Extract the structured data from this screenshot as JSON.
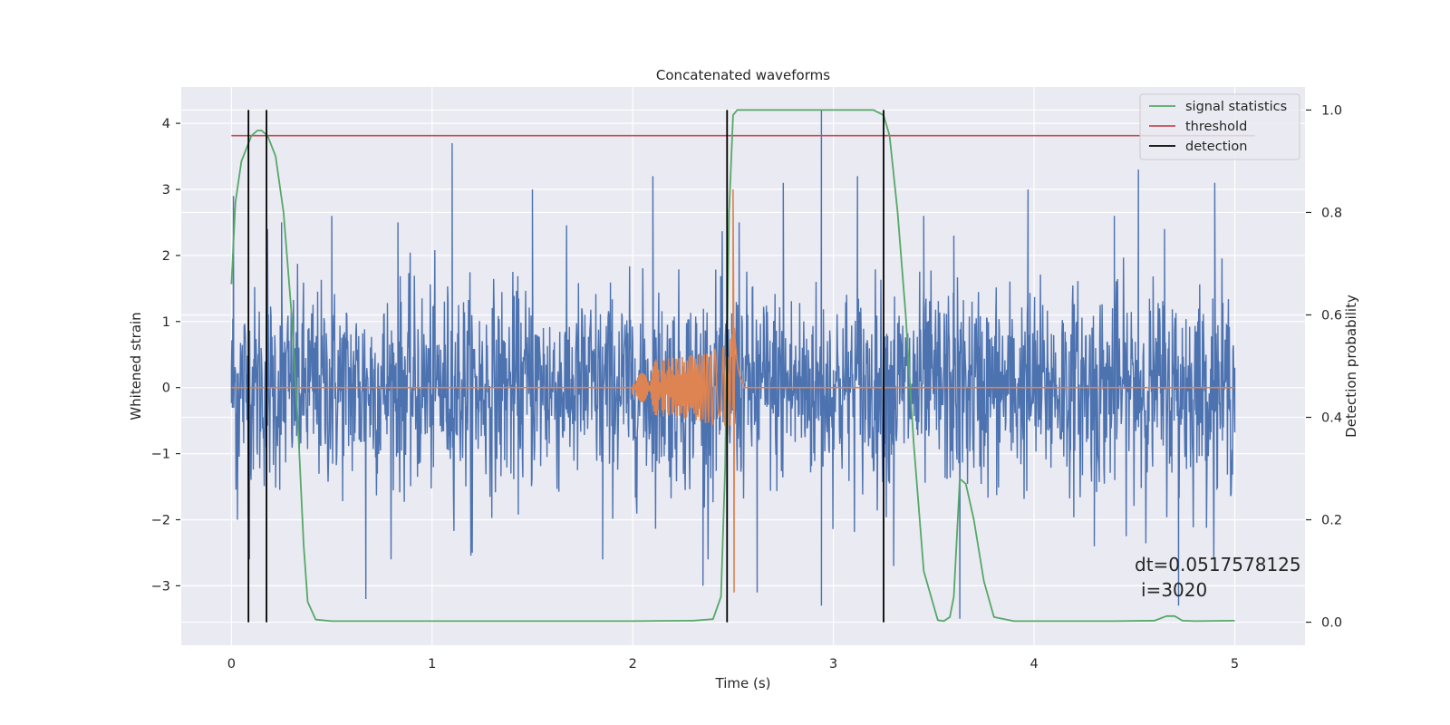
{
  "chart_data": {
    "type": "line",
    "title": "Concatenated waveforms",
    "xlabel": "Time (s)",
    "ylabel_left": "Whitened strain",
    "ylabel_right": "Detection probability",
    "xlim": [
      -0.25,
      5.35
    ],
    "ylim_left": [
      -3.9,
      4.55
    ],
    "ylim_right": [
      -0.045,
      1.045
    ],
    "x_ticks": [
      0,
      1,
      2,
      3,
      4,
      5
    ],
    "x_tick_labels": [
      "0",
      "1",
      "2",
      "3",
      "4",
      "5"
    ],
    "y_left_ticks": [
      -3,
      -2,
      -1,
      0,
      1,
      2,
      3,
      4
    ],
    "y_left_tick_labels": [
      "−3",
      "−2",
      "−1",
      "0",
      "1",
      "2",
      "3",
      "4"
    ],
    "y_right_ticks": [
      0.0,
      0.2,
      0.4,
      0.6,
      0.8,
      1.0
    ],
    "y_right_tick_labels": [
      "0.0",
      "0.2",
      "0.4",
      "0.6",
      "0.8",
      "1.0"
    ],
    "grid": true,
    "legend_position": "top-right",
    "legend": [
      {
        "label": "signal statistics",
        "color": "#55a868"
      },
      {
        "label": "threshold",
        "color": "#c44e52"
      },
      {
        "label": "detection",
        "color": "#000000"
      }
    ],
    "colors": {
      "noise": "#4c72b0",
      "waveform": "#dd8452",
      "signal_statistics": "#55a868",
      "threshold": "#c44e52",
      "detection": "#000000",
      "axes_background": "#eaeaf2",
      "grid": "#ffffff"
    },
    "series": [
      {
        "axis": "left",
        "color": "#4c72b0",
        "x_range": [
          0,
          5
        ],
        "description_points": [
          [
            0.0,
            0.3
          ],
          [
            0.01,
            2.9
          ],
          [
            0.03,
            -2.0
          ],
          [
            0.09,
            -2.6
          ],
          [
            0.18,
            2.4
          ],
          [
            0.25,
            2.5
          ],
          [
            0.5,
            2.6
          ],
          [
            0.67,
            -3.2
          ],
          [
            0.83,
            2.5
          ],
          [
            1.1,
            3.7
          ],
          [
            1.2,
            -2.5
          ],
          [
            1.5,
            3.0
          ],
          [
            1.85,
            -2.6
          ],
          [
            2.1,
            3.2
          ],
          [
            2.35,
            -3.0
          ],
          [
            2.47,
            -3.2
          ],
          [
            2.53,
            2.5
          ],
          [
            2.62,
            -3.1
          ],
          [
            2.75,
            3.1
          ],
          [
            2.94,
            4.2
          ],
          [
            2.94,
            -3.3
          ],
          [
            3.12,
            3.2
          ],
          [
            3.3,
            -2.7
          ],
          [
            3.45,
            2.6
          ],
          [
            3.6,
            2.3
          ],
          [
            3.63,
            -3.5
          ],
          [
            3.97,
            3.0
          ],
          [
            4.3,
            -2.4
          ],
          [
            4.4,
            2.6
          ],
          [
            4.52,
            3.3
          ],
          [
            4.65,
            2.4
          ],
          [
            4.72,
            -3.3
          ],
          [
            4.9,
            3.1
          ],
          [
            5.0,
            0.3
          ]
        ]
      },
      {
        "axis": "left",
        "color": "#dd8452",
        "name": "",
        "chirp": {
          "start": 2.0,
          "merger": 2.5,
          "end": 2.55,
          "peak": 3.0,
          "trough": -3.1
        }
      },
      {
        "axis": "right",
        "name": "signal statistics",
        "color": "#55a868",
        "x": [
          0.0,
          0.02,
          0.05,
          0.1,
          0.13,
          0.15,
          0.18,
          0.22,
          0.26,
          0.3,
          0.33,
          0.36,
          0.38,
          0.42,
          0.5,
          1.0,
          1.5,
          2.0,
          2.3,
          2.4,
          2.44,
          2.46,
          2.48,
          2.5,
          2.52,
          2.55,
          2.8,
          3.0,
          3.1,
          3.2,
          3.25,
          3.28,
          3.32,
          3.36,
          3.4,
          3.45,
          3.52,
          3.55,
          3.58,
          3.6,
          3.63,
          3.66,
          3.7,
          3.75,
          3.8,
          3.9,
          4.0,
          4.4,
          4.6,
          4.66,
          4.7,
          4.74,
          4.8,
          5.0
        ],
        "y": [
          0.66,
          0.82,
          0.9,
          0.95,
          0.96,
          0.96,
          0.95,
          0.91,
          0.8,
          0.6,
          0.4,
          0.15,
          0.04,
          0.005,
          0.002,
          0.002,
          0.002,
          0.002,
          0.003,
          0.006,
          0.05,
          0.3,
          0.8,
          0.99,
          1.0,
          1.0,
          1.0,
          1.0,
          1.0,
          1.0,
          0.99,
          0.95,
          0.8,
          0.6,
          0.35,
          0.1,
          0.004,
          0.002,
          0.01,
          0.05,
          0.28,
          0.27,
          0.2,
          0.08,
          0.01,
          0.002,
          0.002,
          0.002,
          0.003,
          0.012,
          0.012,
          0.003,
          0.002,
          0.003
        ]
      },
      {
        "axis": "right",
        "name": "threshold",
        "color": "#c44e52",
        "x": [
          0,
          5.1
        ],
        "y": [
          0.95,
          0.95
        ]
      }
    ],
    "detections_x": [
      0.085,
      0.175,
      2.47,
      3.25
    ],
    "annotation": {
      "line1": "dt=0.0517578125",
      "line2": "i=3020"
    }
  }
}
